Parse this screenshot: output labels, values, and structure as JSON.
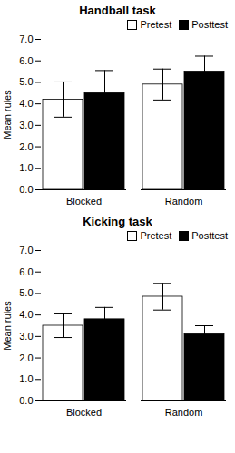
{
  "chart_data": [
    {
      "type": "bar",
      "title": "Handball task",
      "categories": [
        "Blocked",
        "Random"
      ],
      "series": [
        {
          "name": "Pretest",
          "color": "white",
          "values": [
            4.2,
            4.9
          ],
          "errors": [
            0.82,
            0.72
          ]
        },
        {
          "name": "Posttest",
          "color": "black",
          "values": [
            4.5,
            5.5
          ],
          "errors": [
            1.05,
            0.72
          ]
        }
      ],
      "ylabel": "Mean rules",
      "ylim": [
        0,
        7
      ],
      "yticks": [
        0,
        1,
        2,
        3,
        4,
        5,
        6,
        7
      ],
      "legend": "upper right"
    },
    {
      "type": "bar",
      "title": "Kicking task",
      "categories": [
        "Blocked",
        "Random"
      ],
      "series": [
        {
          "name": "Pretest",
          "color": "white",
          "values": [
            3.5,
            4.85
          ],
          "errors": [
            0.55,
            0.62
          ]
        },
        {
          "name": "Posttest",
          "color": "black",
          "values": [
            3.8,
            3.1
          ],
          "errors": [
            0.55,
            0.4
          ]
        }
      ],
      "ylabel": "Mean rules",
      "ylim": [
        0,
        7
      ],
      "yticks": [
        0,
        1,
        2,
        3,
        4,
        5,
        6,
        7
      ],
      "legend": "upper right"
    }
  ]
}
